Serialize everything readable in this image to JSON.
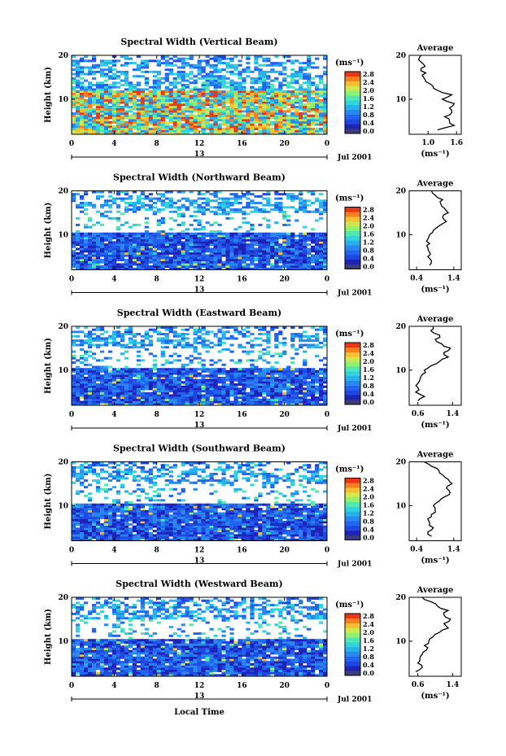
{
  "figure": {
    "xlabel": "Local Time"
  },
  "palette": [
    "#3c3c78",
    "#1e22b8",
    "#1e46e0",
    "#2064f0",
    "#2888f0",
    "#28b0ec",
    "#30d4dc",
    "#50e8b0",
    "#90f070",
    "#d0e850",
    "#f8c030",
    "#f88020",
    "#e83818"
  ],
  "chart_data": [
    {
      "type": "heatmap",
      "title": "Spectral Width (Vertical Beam)",
      "ylabel": "Height (km)",
      "xticks": [
        "0",
        "4",
        "8",
        "12",
        "16",
        "20",
        "0"
      ],
      "xlim": [
        0,
        24
      ],
      "yticks": [
        "10",
        "20"
      ],
      "ylim": [
        2,
        20
      ],
      "date_label": "Jul 2001",
      "day_label": "13",
      "colorbar": {
        "unit": "(ms⁻¹)",
        "ticks": [
          "2.8",
          "2.4",
          "2.0",
          "1.6",
          "1.2",
          "0.8",
          "0.4",
          "0.0"
        ]
      },
      "profile": {
        "title": "Average",
        "xlabel": "(ms⁻¹)",
        "xticks": [
          "1.0",
          "1.6"
        ],
        "xlim": [
          0.6,
          1.7
        ],
        "yticks": [
          "10",
          "20"
        ],
        "ylim": [
          2,
          20
        ],
        "heights": [
          3,
          4,
          5,
          6,
          7,
          8,
          9,
          10,
          11,
          12,
          13,
          14,
          15,
          16,
          17,
          18,
          19,
          20
        ],
        "values": [
          1.2,
          1.55,
          1.45,
          1.35,
          1.5,
          1.45,
          1.55,
          1.3,
          1.5,
          1.2,
          1.1,
          0.95,
          0.9,
          0.95,
          0.85,
          0.9,
          0.8,
          0.85
        ]
      }
    },
    {
      "type": "heatmap",
      "title": "Spectral Width (Northward Beam)",
      "ylabel": "Height (km)",
      "xticks": [
        "0",
        "4",
        "8",
        "12",
        "16",
        "20",
        "0"
      ],
      "xlim": [
        0,
        24
      ],
      "yticks": [
        "10",
        "20"
      ],
      "ylim": [
        2,
        20
      ],
      "date_label": "Jul 2001",
      "day_label": "13",
      "colorbar": {
        "unit": "(ms⁻¹)",
        "ticks": [
          "2.8",
          "2.4",
          "2.0",
          "1.6",
          "1.2",
          "0.8",
          "0.4",
          "0.0"
        ]
      },
      "profile": {
        "title": "Average",
        "xlabel": "(ms⁻¹)",
        "xticks": [
          "0.4",
          "1.4"
        ],
        "xlim": [
          0.2,
          1.6
        ],
        "yticks": [
          "10",
          "20"
        ],
        "ylim": [
          2,
          20
        ],
        "heights": [
          3,
          4,
          5,
          6,
          7,
          8,
          9,
          10,
          11,
          12,
          13,
          14,
          15,
          16,
          17,
          18,
          19,
          20
        ],
        "values": [
          0.75,
          0.8,
          0.7,
          0.75,
          0.7,
          0.75,
          0.7,
          0.75,
          0.85,
          1.0,
          1.2,
          1.1,
          1.25,
          1.15,
          1.05,
          1.1,
          0.9,
          0.8
        ]
      }
    },
    {
      "type": "heatmap",
      "title": "Spectral Width (Eastward Beam)",
      "ylabel": "Height (km)",
      "xticks": [
        "0",
        "4",
        "8",
        "12",
        "16",
        "20",
        "0"
      ],
      "xlim": [
        0,
        24
      ],
      "yticks": [
        "10",
        "20"
      ],
      "ylim": [
        2,
        20
      ],
      "date_label": "Jul 2001",
      "day_label": "13",
      "colorbar": {
        "unit": "(ms⁻¹)",
        "ticks": [
          "2.8",
          "2.4",
          "2.0",
          "1.6",
          "1.2",
          "0.8",
          "0.4",
          "0.0"
        ]
      },
      "profile": {
        "title": "Average",
        "xlabel": "(ms⁻¹)",
        "xticks": [
          "0.6",
          "1.4"
        ],
        "xlim": [
          0.4,
          1.6
        ],
        "yticks": [
          "10",
          "20"
        ],
        "ylim": [
          2,
          20
        ],
        "heights": [
          3,
          4,
          5,
          6,
          7,
          8,
          9,
          10,
          11,
          12,
          13,
          14,
          15,
          16,
          17,
          18,
          19,
          20
        ],
        "values": [
          0.6,
          0.75,
          0.55,
          0.6,
          0.6,
          0.65,
          0.7,
          0.75,
          0.9,
          1.1,
          1.3,
          1.2,
          1.35,
          1.15,
          1.0,
          1.1,
          0.9,
          0.95
        ]
      }
    },
    {
      "type": "heatmap",
      "title": "Spectral Width (Southward Beam)",
      "ylabel": "Height (km)",
      "xticks": [
        "0",
        "4",
        "8",
        "12",
        "16",
        "20",
        "0"
      ],
      "xlim": [
        0,
        24
      ],
      "yticks": [
        "10",
        "20"
      ],
      "ylim": [
        2,
        20
      ],
      "date_label": "Jul 2001",
      "day_label": "13",
      "colorbar": {
        "unit": "(ms⁻¹)",
        "ticks": [
          "2.8",
          "2.4",
          "2.0",
          "1.6",
          "1.2",
          "0.8",
          "0.4",
          "0.0"
        ]
      },
      "profile": {
        "title": "Average",
        "xlabel": "(ms⁻¹)",
        "xticks": [
          "0.4",
          "1.4"
        ],
        "xlim": [
          0.2,
          1.6
        ],
        "yticks": [
          "10",
          "20"
        ],
        "ylim": [
          2,
          20
        ],
        "heights": [
          3,
          4,
          5,
          6,
          7,
          8,
          9,
          10,
          11,
          12,
          13,
          14,
          15,
          16,
          17,
          18,
          19,
          20
        ],
        "values": [
          0.8,
          0.7,
          0.85,
          0.75,
          0.7,
          0.8,
          0.9,
          0.85,
          1.0,
          1.15,
          1.3,
          1.2,
          1.35,
          1.25,
          1.1,
          1.0,
          0.8,
          0.6
        ]
      }
    },
    {
      "type": "heatmap",
      "title": "Spectral Width (Westward Beam)",
      "ylabel": "Height (km)",
      "xticks": [
        "0",
        "4",
        "8",
        "12",
        "16",
        "20",
        "0"
      ],
      "xlim": [
        0,
        24
      ],
      "yticks": [
        "10",
        "20"
      ],
      "ylim": [
        2,
        20
      ],
      "date_label": "Jul 2001",
      "day_label": "13",
      "colorbar": {
        "unit": "(ms⁻¹)",
        "ticks": [
          "2.8",
          "2.4",
          "2.0",
          "1.6",
          "1.2",
          "0.8",
          "0.4",
          "0.0"
        ]
      },
      "profile": {
        "title": "Average",
        "xlabel": "(ms⁻¹)",
        "xticks": [
          "0.6",
          "1.4"
        ],
        "xlim": [
          0.4,
          1.6
        ],
        "yticks": [
          "10",
          "20"
        ],
        "ylim": [
          2,
          20
        ],
        "heights": [
          3,
          4,
          5,
          6,
          7,
          8,
          9,
          10,
          11,
          12,
          13,
          14,
          15,
          16,
          17,
          18,
          19,
          20
        ],
        "values": [
          0.55,
          0.7,
          0.6,
          0.65,
          0.7,
          0.8,
          0.75,
          0.85,
          0.95,
          1.1,
          1.3,
          1.2,
          1.35,
          1.2,
          1.3,
          1.05,
          0.9,
          0.7
        ]
      }
    }
  ]
}
